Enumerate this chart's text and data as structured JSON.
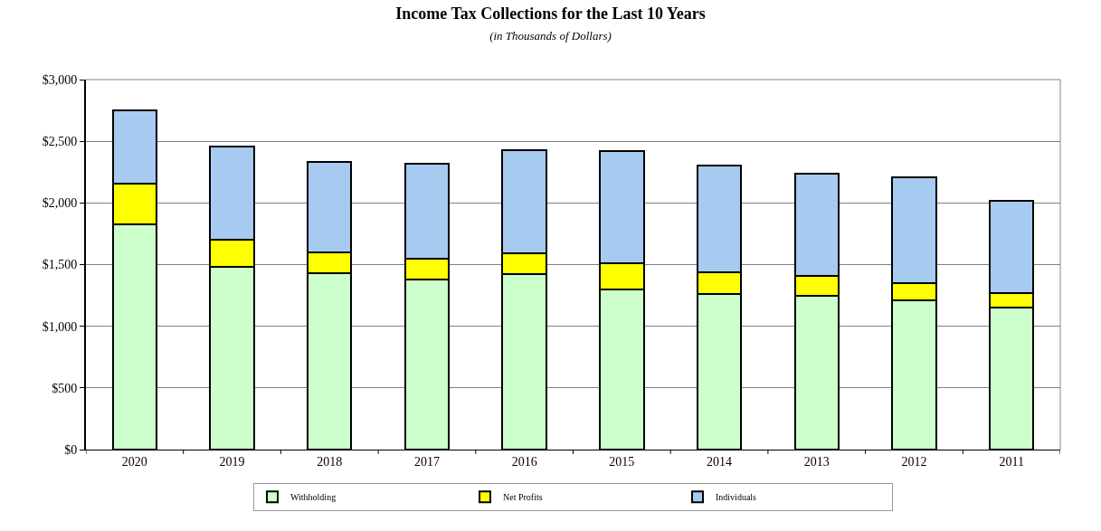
{
  "chart_data": {
    "type": "bar",
    "title": "Income Tax Collections for the Last 10 Years",
    "subtitle": "(in Thousands of Dollars)",
    "categories": [
      "2020",
      "2019",
      "2018",
      "2017",
      "2016",
      "2015",
      "2014",
      "2013",
      "2012",
      "2011"
    ],
    "stacked": true,
    "series": [
      {
        "name": "Withholding",
        "color": "#ccffcc",
        "values": [
          1830,
          1480,
          1430,
          1380,
          1420,
          1300,
          1260,
          1250,
          1210,
          1150
        ]
      },
      {
        "name": "Net Profits",
        "color": "#ffff00",
        "values": [
          330,
          220,
          170,
          170,
          170,
          210,
          180,
          160,
          140,
          120
        ]
      },
      {
        "name": "Individuals",
        "color": "#a6caf0",
        "values": [
          590,
          760,
          730,
          770,
          840,
          910,
          860,
          830,
          860,
          750
        ]
      }
    ],
    "ylim": [
      0,
      3000
    ],
    "yticks": [
      {
        "value": 0,
        "label": "$0"
      },
      {
        "value": 500,
        "label": "$500"
      },
      {
        "value": 1000,
        "label": "$1,000"
      },
      {
        "value": 1500,
        "label": "$1,500"
      },
      {
        "value": 2000,
        "label": "$2,000"
      },
      {
        "value": 2500,
        "label": "$2,500"
      },
      {
        "value": 3000,
        "label": "$3,000"
      }
    ],
    "grid": "y",
    "legend": "bottom"
  }
}
